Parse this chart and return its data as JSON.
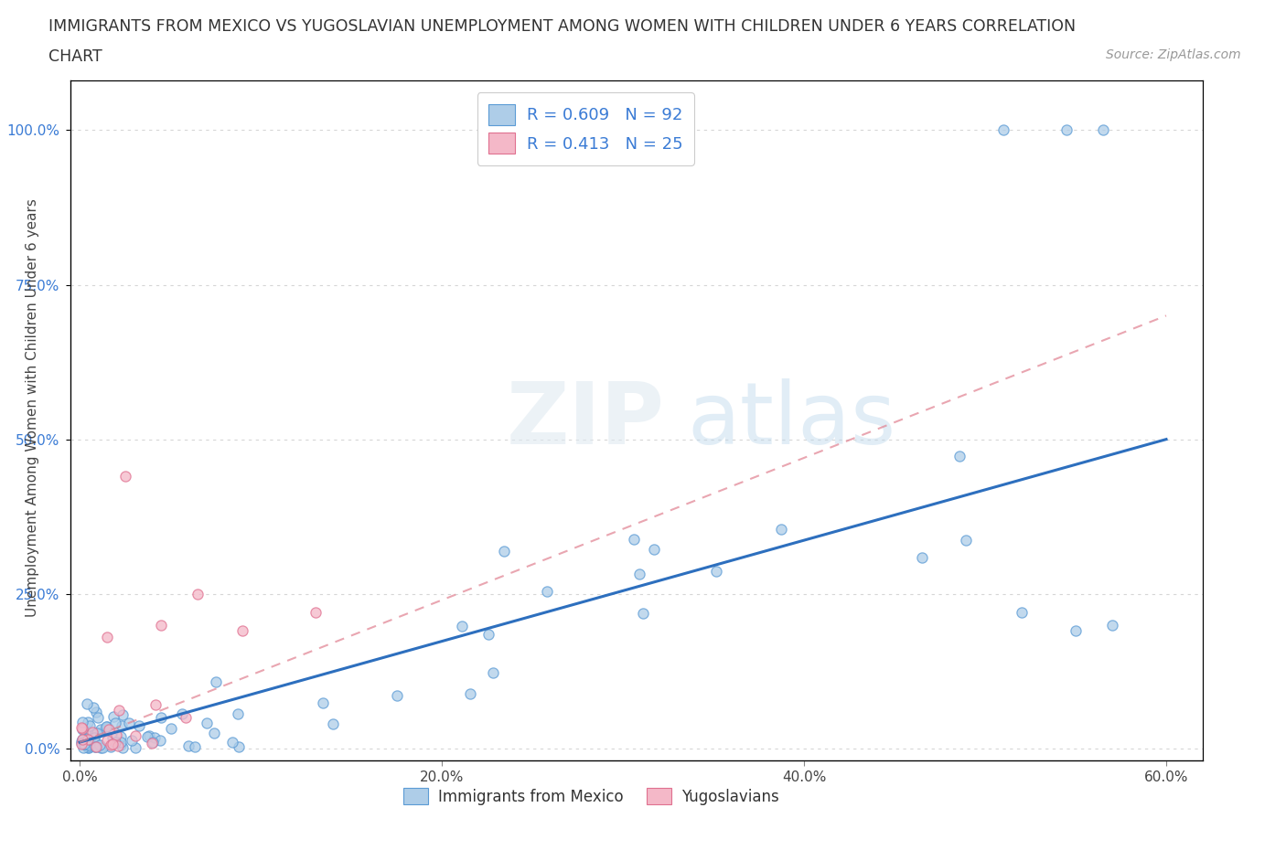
{
  "title_line1": "IMMIGRANTS FROM MEXICO VS YUGOSLAVIAN UNEMPLOYMENT AMONG WOMEN WITH CHILDREN UNDER 6 YEARS CORRELATION",
  "title_line2": "CHART",
  "source": "Source: ZipAtlas.com",
  "ylabel": "Unemployment Among Women with Children Under 6 years",
  "xlim": [
    -0.005,
    0.62
  ],
  "ylim": [
    -0.02,
    1.08
  ],
  "xtick_labels": [
    "0.0%",
    "20.0%",
    "40.0%",
    "60.0%"
  ],
  "xtick_vals": [
    0,
    0.2,
    0.4,
    0.6
  ],
  "ytick_labels": [
    "0.0%",
    "25.0%",
    "50.0%",
    "75.0%",
    "100.0%"
  ],
  "ytick_vals": [
    0,
    0.25,
    0.5,
    0.75,
    1.0
  ],
  "mexico_color": "#aecde8",
  "mexico_edge": "#5b9bd5",
  "yugo_color": "#f4b8c8",
  "yugo_edge": "#e07090",
  "mexico_line_color": "#2d6fbe",
  "yugo_line_color": "#e08090",
  "R_mexico": 0.609,
  "N_mexico": 92,
  "R_yugo": 0.413,
  "N_yugo": 25,
  "legend_entries": [
    "Immigrants from Mexico",
    "Yugoslavians"
  ],
  "watermark_zip": "ZIP",
  "watermark_atlas": "atlas",
  "background_color": "#ffffff",
  "grid_color": "#cccccc",
  "axis_color": "#888888",
  "tick_label_color": "#3a7bd5",
  "title_color": "#333333",
  "source_color": "#999999"
}
